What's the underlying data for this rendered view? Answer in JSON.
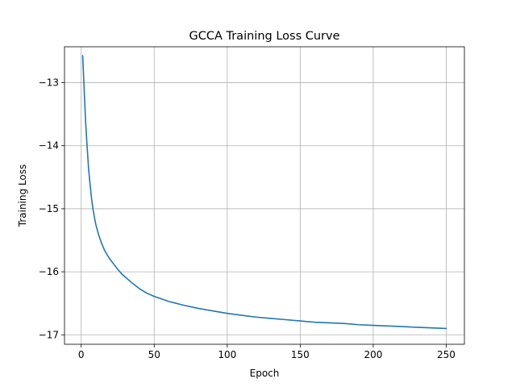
{
  "chart_data": {
    "type": "line",
    "title": "GCCA Training Loss Curve",
    "xlabel": "Epoch",
    "ylabel": "Training Loss",
    "xlim": [
      -11.45,
      262.45
    ],
    "ylim": [
      -17.15,
      -12.43
    ],
    "x_ticks": [
      0,
      50,
      100,
      150,
      200,
      250
    ],
    "x_tick_labels": [
      "0",
      "50",
      "100",
      "150",
      "200",
      "250"
    ],
    "y_ticks": [
      -13,
      -14,
      -15,
      -16,
      -17
    ],
    "y_tick_labels": [
      "−13",
      "−14",
      "−15",
      "−16",
      "−17"
    ],
    "grid": true,
    "line_color": "#1f77b4",
    "grid_color": "#b0b0b0",
    "series": [
      {
        "x": [
          1,
          2,
          3,
          4,
          5,
          6,
          7,
          8,
          9,
          10,
          12,
          14,
          16,
          18,
          20,
          22,
          25,
          28,
          30,
          35,
          40,
          45,
          50,
          55,
          60,
          65,
          70,
          80,
          90,
          100,
          110,
          120,
          130,
          140,
          150,
          160,
          170,
          180,
          190,
          200,
          210,
          220,
          230,
          240,
          250
        ],
        "y": [
          -12.57,
          -13.1,
          -13.62,
          -14.0,
          -14.35,
          -14.6,
          -14.82,
          -15.0,
          -15.13,
          -15.25,
          -15.42,
          -15.55,
          -15.66,
          -15.74,
          -15.81,
          -15.87,
          -15.96,
          -16.04,
          -16.08,
          -16.18,
          -16.27,
          -16.34,
          -16.39,
          -16.43,
          -16.47,
          -16.5,
          -16.53,
          -16.58,
          -16.62,
          -16.66,
          -16.69,
          -16.72,
          -16.74,
          -16.76,
          -16.78,
          -16.8,
          -16.81,
          -16.82,
          -16.84,
          -16.85,
          -16.86,
          -16.87,
          -16.88,
          -16.89,
          -16.9
        ]
      }
    ]
  }
}
